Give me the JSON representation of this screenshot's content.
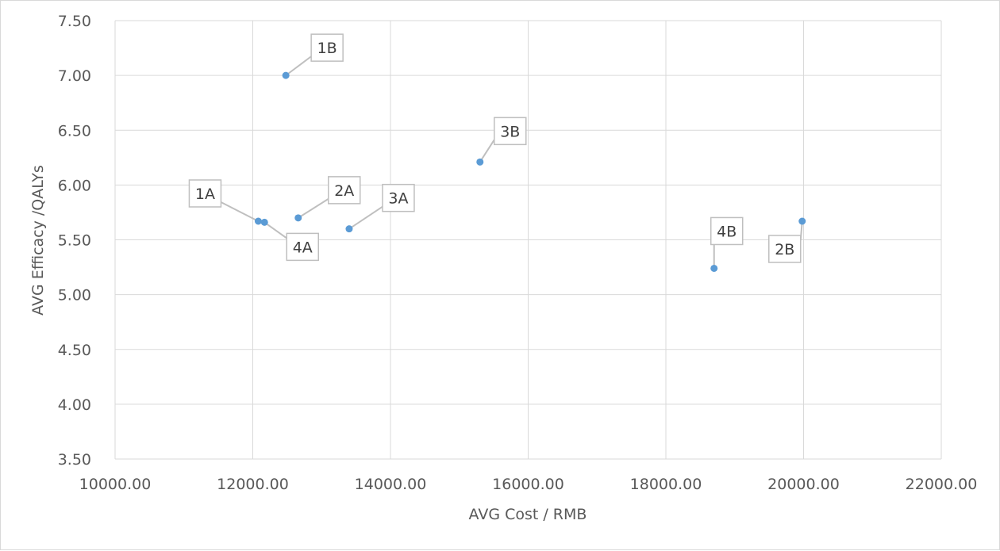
{
  "chart_data": {
    "type": "scatter",
    "title": "",
    "xlabel": "AVG Cost / RMB",
    "ylabel": "AVG Efficacy /QALYs",
    "xlim": [
      10000,
      22000
    ],
    "ylim": [
      3.5,
      7.5
    ],
    "x_ticks": [
      "10000.00",
      "12000.00",
      "14000.00",
      "16000.00",
      "18000.00",
      "20000.00",
      "22000.00"
    ],
    "y_ticks": [
      "3.50",
      "4.00",
      "4.50",
      "5.00",
      "5.50",
      "6.00",
      "6.50",
      "7.00",
      "7.50"
    ],
    "grid": true,
    "legend": "none",
    "marker_color": "#5b9bd5",
    "points": [
      {
        "label": "1A",
        "x": 12080,
        "y": 5.67
      },
      {
        "label": "4A",
        "x": 12170,
        "y": 5.66
      },
      {
        "label": "1B",
        "x": 12480,
        "y": 7.0
      },
      {
        "label": "2A",
        "x": 12660,
        "y": 5.7
      },
      {
        "label": "3A",
        "x": 13400,
        "y": 5.6
      },
      {
        "label": "3B",
        "x": 15300,
        "y": 6.21
      },
      {
        "label": "4B",
        "x": 18700,
        "y": 5.24
      },
      {
        "label": "2B",
        "x": 19980,
        "y": 5.67
      }
    ]
  }
}
